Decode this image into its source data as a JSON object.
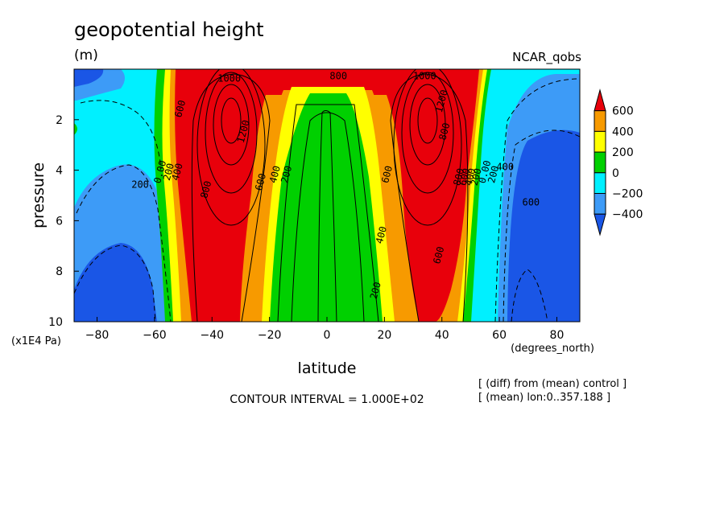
{
  "chart_data": {
    "type": "heatmap",
    "title": "geopotential height",
    "subtitle": "(m)",
    "dataset_label": "NCAR_qobs",
    "xlabel": "latitude",
    "ylabel": "pressure",
    "x_unit_label": "(degrees_north)",
    "y_unit_label": "(x1E4 Pa)",
    "x_ticks": [
      "-80",
      "-60",
      "-40",
      "-20",
      "0",
      "20",
      "40",
      "60",
      "80"
    ],
    "y_ticks": [
      "2",
      "4",
      "6",
      "8",
      "10"
    ],
    "xlim": [
      -88,
      88
    ],
    "ylim": [
      10,
      0
    ],
    "contour_interval_text": "CONTOUR INTERVAL = 1.000E+02",
    "notes": [
      "[ (diff) from (mean) control ]",
      "[ (mean) lon:0..357.188 ]"
    ],
    "colorbar": {
      "labels": [
        "600",
        "400",
        "200",
        "0",
        "−200",
        "−400"
      ],
      "colors": [
        "#e8000b",
        "#f79a00",
        "#ffff00",
        "#00d000",
        "#00f0ff",
        "#3d9bf7",
        "#1a56e6"
      ]
    },
    "contour_labels": [
      {
        "text": "1000",
        "lat": -34,
        "p": 0.5
      },
      {
        "text": "800",
        "lat": 4,
        "p": 0.4
      },
      {
        "text": "1000",
        "lat": 34,
        "p": 0.4
      },
      {
        "text": "600",
        "lat": -50,
        "p": 1.6
      },
      {
        "text": "1200",
        "lat": -28,
        "p": 2.5
      },
      {
        "text": "1200",
        "lat": 41,
        "p": 1.3
      },
      {
        "text": "800",
        "lat": 42,
        "p": 2.5
      },
      {
        "text": "0.00",
        "lat": -57,
        "p": 4.1
      },
      {
        "text": "200",
        "lat": -54,
        "p": 4.1
      },
      {
        "text": "400",
        "lat": -51,
        "p": 4.1
      },
      {
        "text": "200",
        "lat": -65,
        "p": 4.7
      },
      {
        "text": "800",
        "lat": -41,
        "p": 4.8
      },
      {
        "text": "600",
        "lat": -22,
        "p": 4.5
      },
      {
        "text": "400",
        "lat": -17,
        "p": 4.2
      },
      {
        "text": "200",
        "lat": -13,
        "p": 4.2
      },
      {
        "text": "600",
        "lat": 22,
        "p": 4.2
      },
      {
        "text": "800",
        "lat": 47,
        "p": 4.3
      },
      {
        "text": "600",
        "lat": 49,
        "p": 4.3
      },
      {
        "text": "400",
        "lat": 51,
        "p": 4.3
      },
      {
        "text": "200",
        "lat": 53,
        "p": 4.3
      },
      {
        "text": "0.00",
        "lat": 56,
        "p": 4.1
      },
      {
        "text": "200",
        "lat": 59,
        "p": 4.2
      },
      {
        "text": "400",
        "lat": 62,
        "p": 4.0
      },
      {
        "text": "600",
        "lat": 71,
        "p": 5.4
      },
      {
        "text": "400",
        "lat": 20,
        "p": 6.6
      },
      {
        "text": "600",
        "lat": 40,
        "p": 7.4
      },
      {
        "text": "200",
        "lat": 18,
        "p": 8.8
      }
    ]
  }
}
